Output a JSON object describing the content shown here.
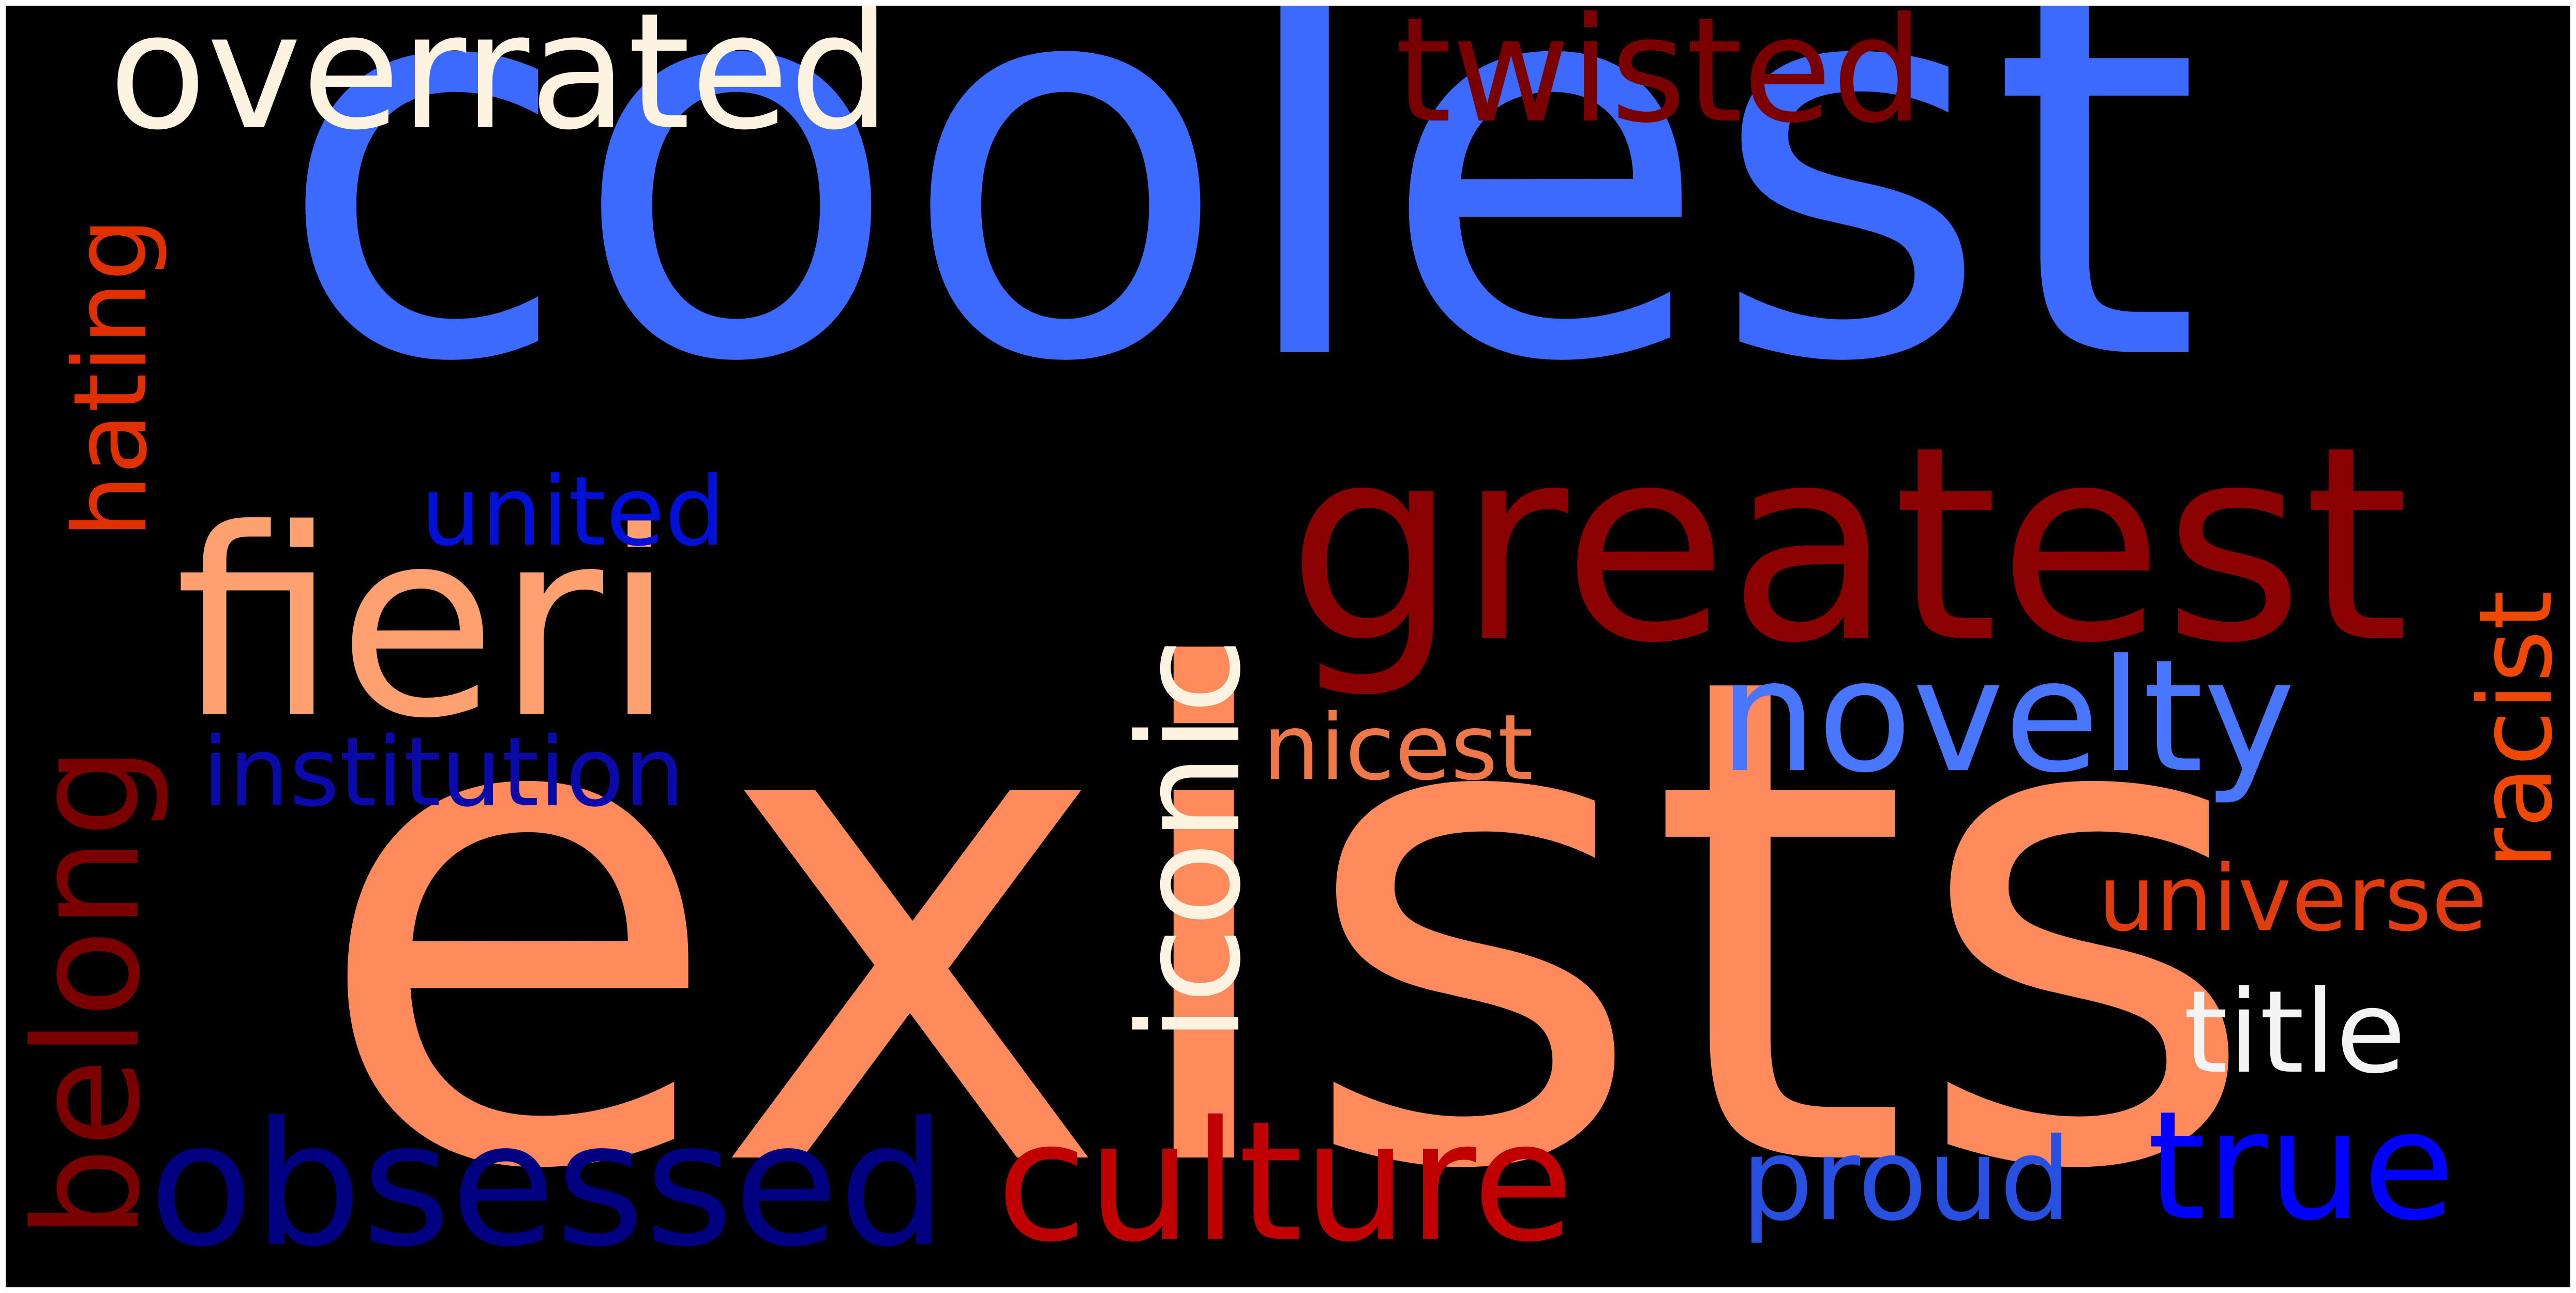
{
  "words": [
    {
      "key": "coolest",
      "text": "coolest",
      "color": "#3c6aff"
    },
    {
      "key": "exists",
      "text": "exists",
      "color": "#ff8a5c"
    },
    {
      "key": "greatest",
      "text": "greatest",
      "color": "#8b0000"
    },
    {
      "key": "fieri",
      "text": "fieri",
      "color": "#ffa070"
    },
    {
      "key": "overrated",
      "text": "overrated",
      "color": "#fdf3e0"
    },
    {
      "key": "twisted",
      "text": "twisted",
      "color": "#7a0000"
    },
    {
      "key": "hating",
      "text": "hating",
      "color": "#e03000"
    },
    {
      "key": "united",
      "text": "united",
      "color": "#0010d8"
    },
    {
      "key": "iconic",
      "text": "iconic",
      "color": "#fdf3e0"
    },
    {
      "key": "novelty",
      "text": "novelty",
      "color": "#4876ff"
    },
    {
      "key": "belong",
      "text": "belong",
      "color": "#7a0000"
    },
    {
      "key": "institution",
      "text": "institution",
      "color": "#0a0aaa"
    },
    {
      "key": "nicest",
      "text": "nicest",
      "color": "#f07848"
    },
    {
      "key": "racist",
      "text": "racist",
      "color": "#f04800"
    },
    {
      "key": "universe",
      "text": "universe",
      "color": "#e03c10"
    },
    {
      "key": "title",
      "text": "title",
      "color": "#f4f4f4"
    },
    {
      "key": "obsessed",
      "text": "obsessed",
      "color": "#000080"
    },
    {
      "key": "culture",
      "text": "culture",
      "color": "#c00000"
    },
    {
      "key": "proud",
      "text": "proud",
      "color": "#2850e0"
    },
    {
      "key": "true",
      "text": "true",
      "color": "#0000ff"
    }
  ]
}
